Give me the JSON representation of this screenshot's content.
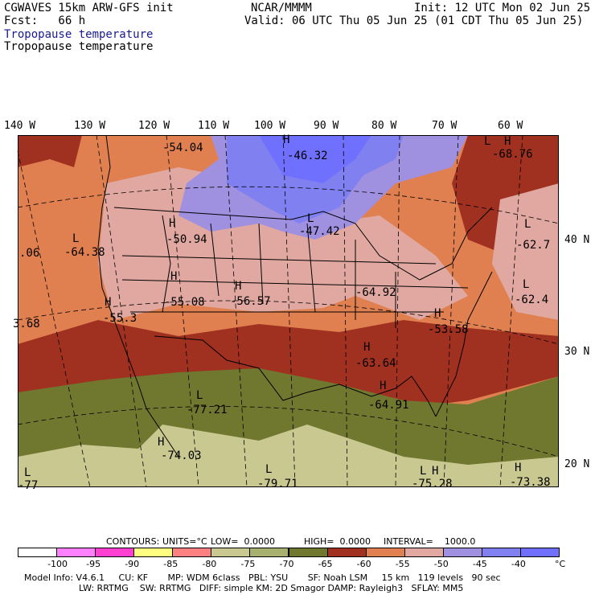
{
  "header": {
    "title": "CGWAVES 15km ARW-GFS init",
    "org": "NCAR/MMMM",
    "init": "Init: 12 UTC Mon 02 Jun 25",
    "fcst": "Fcst:   66 h",
    "valid": "Valid: 06 UTC Thu 05 Jun 25 (01 CDT Thu 05 Jun 25)",
    "field_line1": "Tropopause temperature",
    "field_line2": "Tropopause temperature"
  },
  "longitudes": [
    "140 W",
    "130 W",
    "120 W",
    "110 W",
    "100 W",
    "90 W",
    "80 W",
    "70 W",
    "60 W"
  ],
  "latitudes": [
    "40 N",
    "30 N",
    "20 N"
  ],
  "map_labels": {
    "highs": [
      "H",
      "H",
      "H",
      "H",
      "H",
      "H",
      "H",
      "H",
      "H",
      "H",
      "H",
      "H"
    ],
    "lows": [
      "L",
      "L",
      "L",
      "L",
      "L",
      "L",
      "L",
      "L",
      "L"
    ],
    "values": [
      "-54.04",
      "-46.32",
      "-68.76",
      "-50.94",
      "-47.42",
      "-64.38",
      "-62.7",
      ".06",
      "-55.08",
      "-56.57",
      "-64.92",
      "-62.4",
      "-55.3",
      "-53.58",
      "3.68",
      "-63.64",
      "-77.21",
      "-64.91",
      "-74.03",
      "-77",
      "-79.71",
      "-75.28",
      "-73.38"
    ]
  },
  "contours_line": {
    "label": "CONTOURS:",
    "units": "UNITS=°C",
    "low": "LOW=  0.0000",
    "high": "HIGH=  0.0000",
    "interval": "INTERVAL=    1000.0"
  },
  "colorbar": {
    "ticks": [
      "-100",
      "-95",
      "-90",
      "-85",
      "-80",
      "-75",
      "-70",
      "-65",
      "-60",
      "-55",
      "-50",
      "-45",
      "-40"
    ],
    "unit": "°C",
    "colors": [
      "#ffffff",
      "#ff80ff",
      "#ff40d0",
      "#ffff80",
      "#ff8080",
      "#c8c890",
      "#a8b070",
      "#70782f",
      "#a03020",
      "#e08050",
      "#e0a8a0",
      "#a090e0",
      "#8080f0",
      "#7070ff"
    ]
  },
  "footer": {
    "line1": "Model Info: V4.6.1     CU: KF       MP: WDM 6class   PBL: YSU       SF: Noah LSM     15 km   119 levels   90 sec",
    "line2": "LW: RRTMG    SW: RRTMG   DIFF: simple KM: 2D Smagor DAMP: Rayleigh3   SFLAY: MM5"
  }
}
